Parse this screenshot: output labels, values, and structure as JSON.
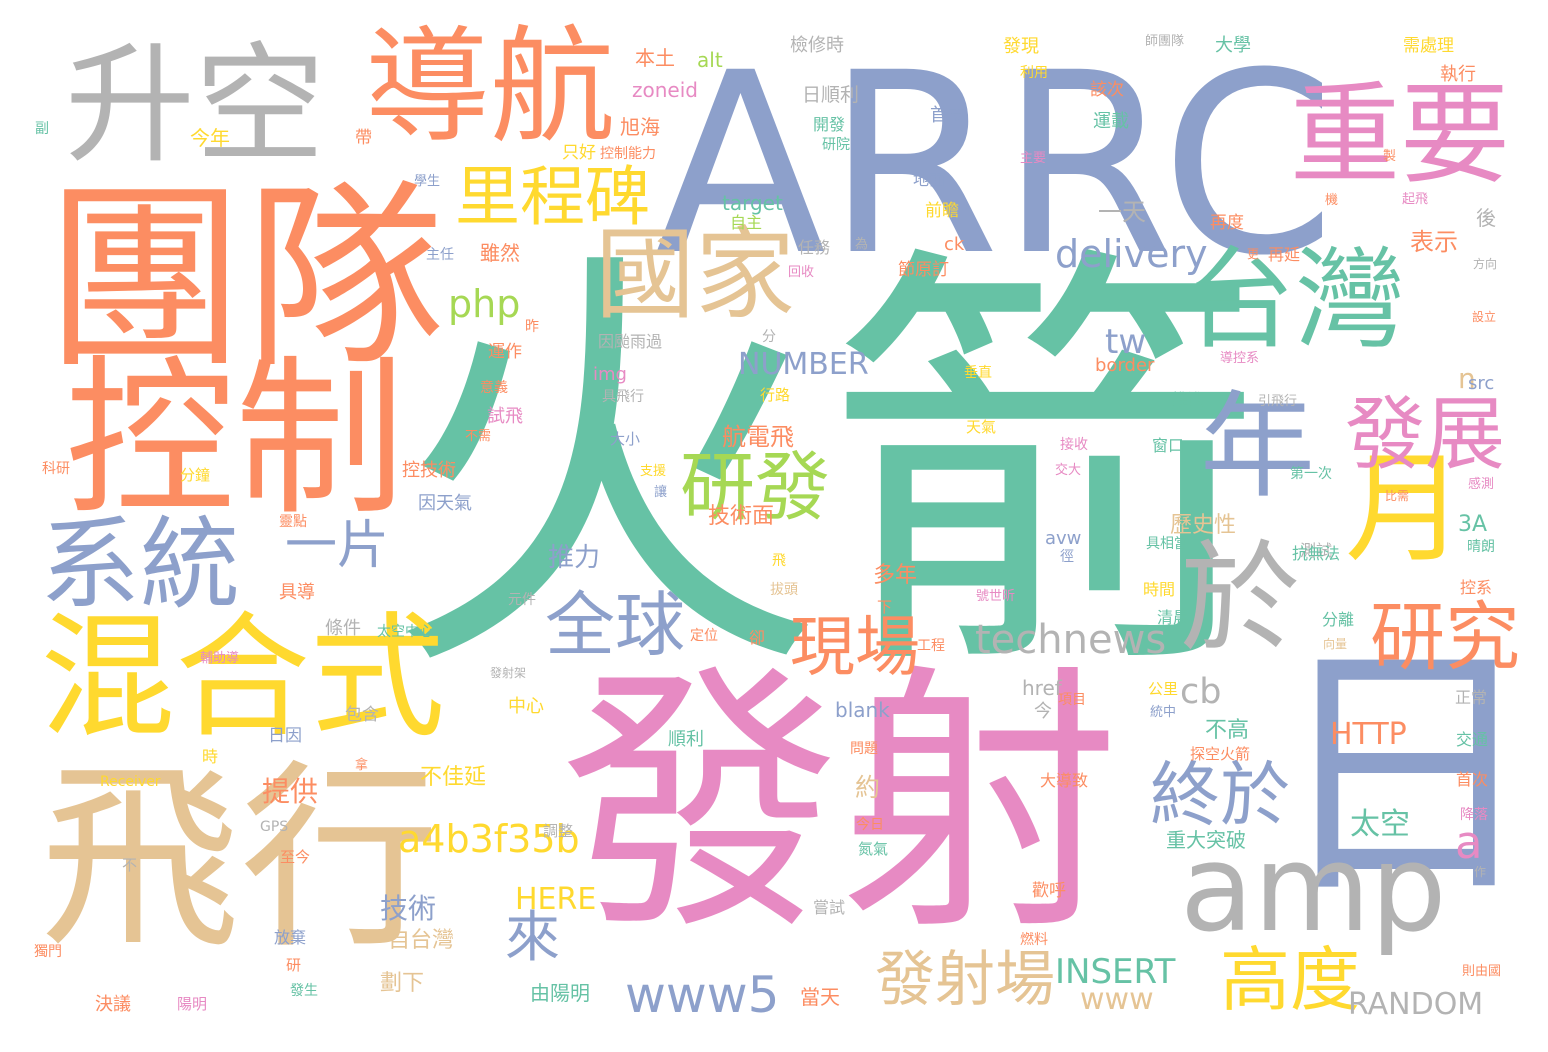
{
  "palette": {
    "green": "#66c2a5",
    "orange": "#fc8d62",
    "blue": "#8da0cb",
    "pink": "#e78ac3",
    "lime": "#a6d854",
    "yellow": "#ffd92f",
    "tan": "#e5c494",
    "gray": "#b3b3b3"
  },
  "words": [
    "火箭",
    "發射",
    "ARRC",
    "團隊",
    "飛行",
    "控制",
    "混合式",
    "日",
    "升空",
    "導航",
    "重要",
    "台灣",
    "年",
    "月",
    "於",
    "amp",
    "系統",
    "國家",
    "里程碑",
    "發展",
    "研發",
    "研究",
    "全球",
    "現場",
    "終於",
    "高度",
    "發射場",
    "www5",
    "一片",
    "來",
    "technews",
    "delivery",
    "php",
    "a4b3f35b",
    "HTTP",
    "太空",
    "a",
    "n",
    "cb",
    "tw",
    "NUMBER",
    "INSERT",
    "RANDOM",
    "HERE",
    "www",
    "推力",
    "提供",
    "技術",
    "自台灣",
    "不佳延",
    "航電飛",
    "技術面",
    "約",
    "多年",
    "劃下",
    "當天",
    "由陽明",
    "不高",
    "歷史性",
    "重大突破",
    "表示",
    "一天",
    "alt",
    "zoneid",
    "target",
    "blank",
    "href",
    "img",
    "src",
    "border",
    "3A",
    "avw",
    "ck",
    "GPS",
    "Receiver",
    "本土",
    "今年",
    "旭海",
    "只好",
    "學生",
    "主任",
    "雖然",
    "運作",
    "試飛",
    "控技術",
    "因天氣",
    "元件",
    "條件",
    "太空中心",
    "定位",
    "順利",
    "中心",
    "包含",
    "日因",
    "時",
    "輔助導",
    "具導",
    "分鐘",
    "靈點",
    "至今",
    "放棄",
    "研",
    "發生",
    "決議",
    "陽明",
    "不",
    "獨門",
    "科研",
    "檢修時",
    "日順利",
    "開發",
    "研院",
    "首支",
    "運載",
    "該次",
    "發現",
    "大學",
    "利用",
    "需處理",
    "執行",
    "地面",
    "前瞻",
    "自主",
    "任務",
    "回收",
    "節原訂",
    "再度",
    "後",
    "再延",
    "起飛",
    "方向",
    "設立",
    "分",
    "因颱雨過",
    "具飛行",
    "行路",
    "垂直",
    "推進",
    "天氣",
    "窗口",
    "接收",
    "交大",
    "第一次",
    "比需",
    "感測",
    "晴朗",
    "測試",
    "具相當",
    "抗無法",
    "時間",
    "控系",
    "清晨",
    "分離",
    "向量",
    "正常",
    "今",
    "項目",
    "統中",
    "公里",
    "探空火箭",
    "交通",
    "首次",
    "降落",
    "問題",
    "大導致",
    "拿",
    "調整",
    "今日",
    "氮氣",
    "嘗試",
    "歡呼",
    "燃料",
    "作",
    "則由國",
    "工程",
    "卻",
    "下",
    "發射架",
    "拔頭",
    "號世昕",
    "徑",
    "支援",
    "讓",
    "大小",
    "導控系",
    "引飛行",
    "帶",
    "副",
    "控制能力",
    "主要",
    "師團隊",
    "為",
    "更",
    "機",
    "製",
    "意義",
    "不需",
    "昨",
    "飛"
  ]
}
